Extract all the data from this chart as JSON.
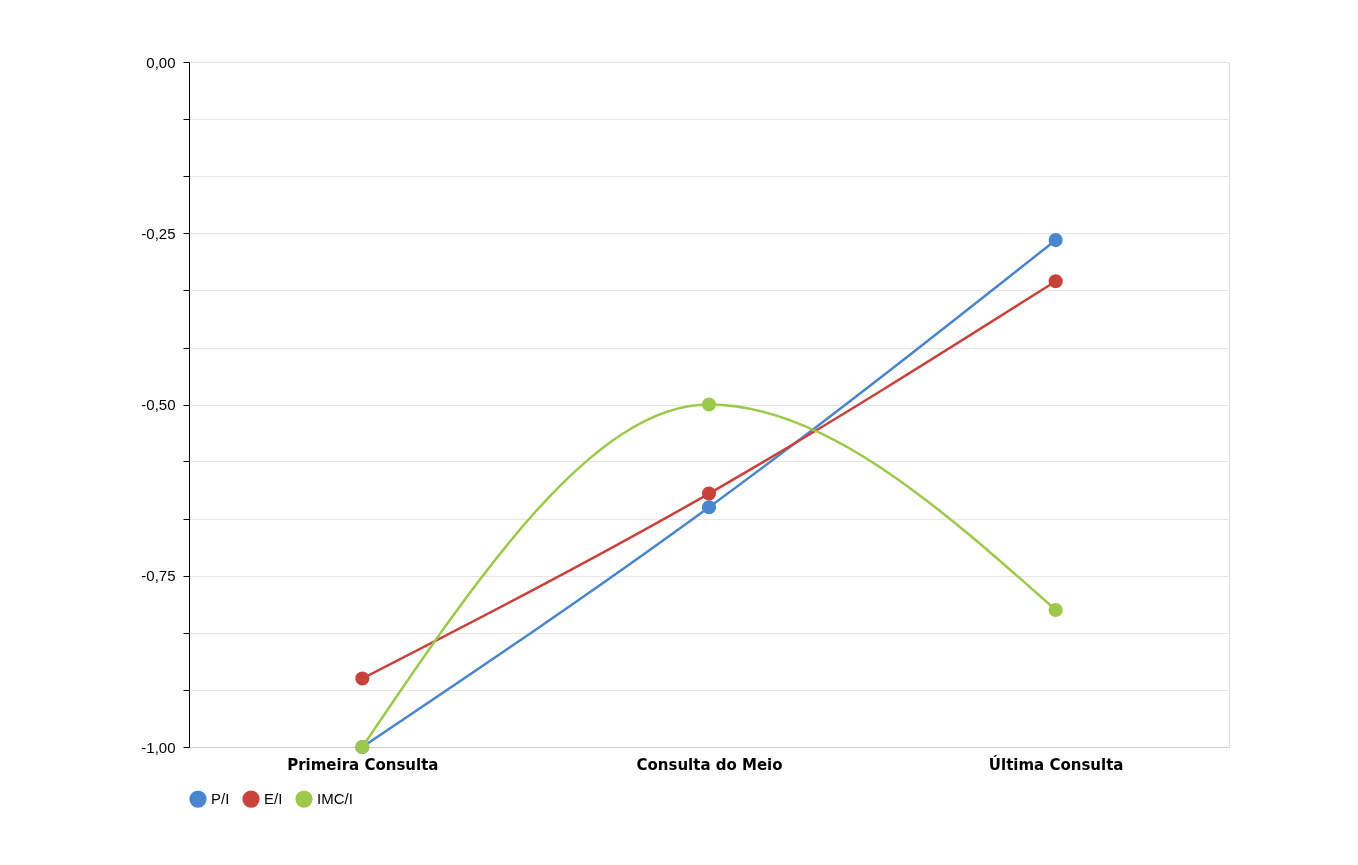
{
  "chart_data": {
    "type": "line",
    "categories": [
      "Primeira Consulta",
      "Consulta do Meio",
      "Última Consulta"
    ],
    "series": [
      {
        "name": "P/I",
        "color": "#4a86cf",
        "values": [
          -1.0,
          -0.65,
          -0.26
        ]
      },
      {
        "name": "E/I",
        "color": "#c9413b",
        "values": [
          -0.9,
          -0.63,
          -0.32
        ]
      },
      {
        "name": "IMC/I",
        "color": "#9cc84b",
        "values": [
          -1.0,
          -0.5,
          -0.8
        ]
      }
    ],
    "ylim": [
      -1.0,
      0.0
    ],
    "yticks": [
      {
        "value": 0,
        "label": "0,00"
      },
      {
        "value": -0.083,
        "label": null
      },
      {
        "value": -0.167,
        "label": null
      },
      {
        "value": -0.25,
        "label": "-0,25"
      },
      {
        "value": -0.333,
        "label": null
      },
      {
        "value": -0.417,
        "label": null
      },
      {
        "value": -0.5,
        "label": "-0,50"
      },
      {
        "value": -0.583,
        "label": null
      },
      {
        "value": -0.667,
        "label": null
      },
      {
        "value": -0.75,
        "label": "-0,75"
      },
      {
        "value": -0.833,
        "label": null
      },
      {
        "value": -0.917,
        "label": null
      },
      {
        "value": -1.0,
        "label": "-1,00"
      }
    ],
    "grid": "y",
    "legend": "bottom",
    "marker": "circle",
    "line_style": "solid"
  }
}
